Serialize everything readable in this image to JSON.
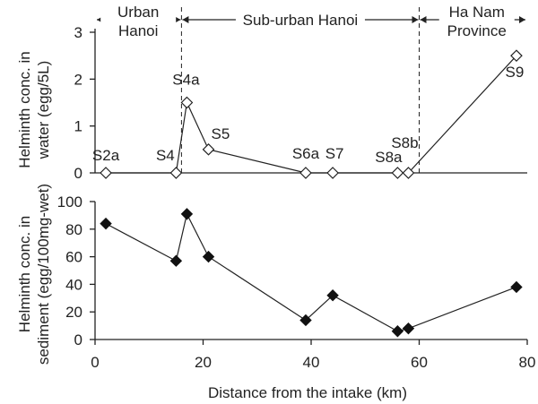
{
  "chart_data": [
    {
      "type": "line",
      "panel": "top",
      "ylabel": "Helminth conc. in water (egg/5L)",
      "ylim": [
        0,
        3
      ],
      "yticks": [
        0,
        1,
        2,
        3
      ],
      "marker": "open-diamond",
      "series": [
        {
          "points": [
            {
              "x": 2,
              "y": 0,
              "label": "S2a"
            },
            {
              "x": 15,
              "y": 0,
              "label": "S4"
            },
            {
              "x": 17,
              "y": 1.5,
              "label": "S4a"
            },
            {
              "x": 21,
              "y": 0.5,
              "label": "S5"
            },
            {
              "x": 39,
              "y": 0,
              "label": "S6a"
            },
            {
              "x": 44,
              "y": 0,
              "label": "S7"
            },
            {
              "x": 56,
              "y": 0,
              "label": "S8a"
            },
            {
              "x": 58,
              "y": 0,
              "label": "S8b"
            },
            {
              "x": 78,
              "y": 2.5,
              "label": "S9"
            }
          ]
        }
      ],
      "regions": [
        {
          "label_lines": [
            "Urban",
            "Hanoi"
          ],
          "x_start": 0,
          "x_end": 16
        },
        {
          "label_lines": [
            "Sub-urban Hanoi"
          ],
          "x_start": 16,
          "x_end": 60
        },
        {
          "label_lines": [
            "Ha Nam",
            "Province"
          ],
          "x_start": 60,
          "x_end": 80
        }
      ]
    },
    {
      "type": "line",
      "panel": "bottom",
      "ylabel": "Helminth conc. in sediment (egg/100mg-wet)",
      "xlabel": "Distance from the intake (km)",
      "xlim": [
        0,
        80
      ],
      "xticks": [
        0,
        20,
        40,
        60,
        80
      ],
      "ylim": [
        0,
        100
      ],
      "yticks": [
        0,
        20,
        40,
        60,
        80,
        100
      ],
      "marker": "filled-diamond",
      "series": [
        {
          "points": [
            {
              "x": 2,
              "y": 84
            },
            {
              "x": 15,
              "y": 57
            },
            {
              "x": 17,
              "y": 91
            },
            {
              "x": 21,
              "y": 60
            },
            {
              "x": 39,
              "y": 14
            },
            {
              "x": 44,
              "y": 32
            },
            {
              "x": 56,
              "y": 6
            },
            {
              "x": 58,
              "y": 8
            },
            {
              "x": 78,
              "y": 38
            }
          ]
        }
      ]
    }
  ]
}
